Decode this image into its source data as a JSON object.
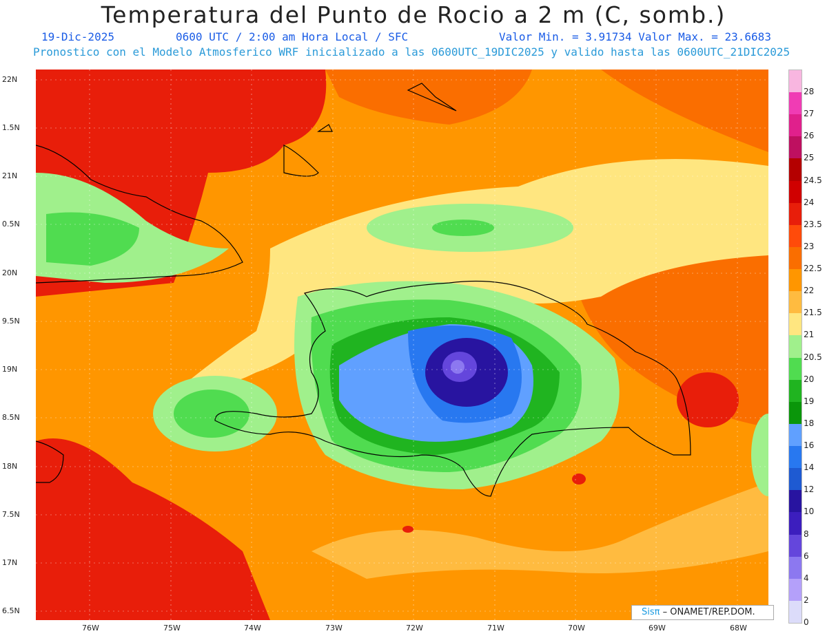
{
  "title": "Temperatura del Punto de Rocio a 2 m (C, somb.)",
  "date": "19-Dic-2025",
  "time_info": "0600 UTC / 2:00 am Hora Local / SFC",
  "min_max": "Valor Min. = 3.91734  Valor Max. = 23.6683",
  "model_info": "Pronostico con el Modelo Atmosferico WRF inicializado a las 0600UTC_19DIC2025 y valido hasta las  0600UTC_21DIC2025",
  "lat_labels": [
    "22N",
    "1.5N",
    "21N",
    "0.5N",
    "20N",
    "9.5N",
    "19N",
    "8.5N",
    "18N",
    "7.5N",
    "17N",
    "6.5N"
  ],
  "lon_labels": [
    "76W",
    "75W",
    "74W",
    "73W",
    "72W",
    "71W",
    "70W",
    "69W",
    "68W"
  ],
  "colorbar": {
    "labels": [
      "28",
      "27",
      "26",
      "25",
      "24.5",
      "24",
      "23.5",
      "23",
      "22.5",
      "22",
      "21.5",
      "21",
      "20.5",
      "20",
      "19",
      "18",
      "16",
      "14",
      "12",
      "10",
      "8",
      "6",
      "4",
      "2",
      "0"
    ],
    "colors": [
      "#f8b6e0",
      "#f03cb4",
      "#e0208c",
      "#be1060",
      "#b40000",
      "#d00000",
      "#e81e0a",
      "#ff4b0a",
      "#fa6e00",
      "#ff9600",
      "#ffbb40",
      "#ffe680",
      "#a0f08c",
      "#50dc50",
      "#20b420",
      "#0a960a",
      "#60a0ff",
      "#2878f0",
      "#1e5ad2",
      "#2814a0",
      "#3c1ebe",
      "#6446dc",
      "#8c78f0",
      "#b4a0fa",
      "#dcdcfa"
    ]
  },
  "credit": {
    "logo": "Sisπ",
    "text": " – ONAMET/REP.DOM."
  }
}
